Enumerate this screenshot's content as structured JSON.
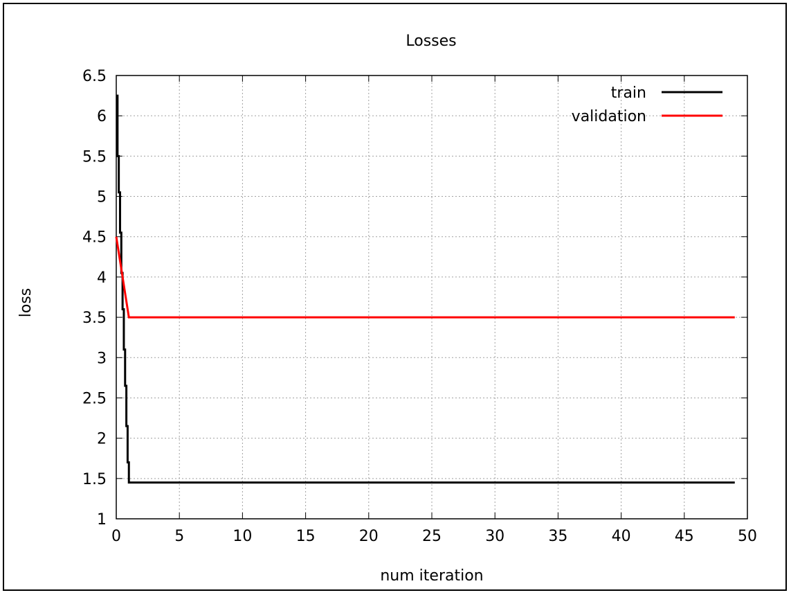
{
  "chart_data": {
    "type": "line",
    "title": "Losses",
    "xlabel": "num iteration",
    "ylabel": "loss",
    "xlim": [
      0,
      50
    ],
    "ylim": [
      1,
      6.5
    ],
    "xticks": [
      0,
      5,
      10,
      15,
      20,
      25,
      30,
      35,
      40,
      45,
      50
    ],
    "xtick_labels": [
      "0",
      "5",
      "10",
      "15",
      "20",
      "25",
      "30",
      "35",
      "40",
      "45",
      "50"
    ],
    "yticks": [
      1,
      1.5,
      2,
      2.5,
      3,
      3.5,
      4,
      4.5,
      5,
      5.5,
      6,
      6.5
    ],
    "ytick_labels": [
      "1",
      "1.5",
      "2",
      "2.5",
      "3",
      "3.5",
      "4",
      "4.5",
      "5",
      "5.5",
      "6",
      "6.5"
    ],
    "grid": true,
    "legend_position": "top-right",
    "series": [
      {
        "name": "train",
        "color": "#000000",
        "x": [
          0,
          0.1,
          0.2,
          0.3,
          0.4,
          0.5,
          0.6,
          0.7,
          0.8,
          0.9,
          1,
          49
        ],
        "y": [
          6.25,
          5.5,
          5.05,
          4.55,
          4.05,
          3.6,
          3.1,
          2.65,
          2.15,
          1.7,
          1.45,
          1.45
        ]
      },
      {
        "name": "validation",
        "color": "#ff0000",
        "x": [
          0,
          1,
          49
        ],
        "y": [
          4.5,
          3.5,
          3.5
        ]
      }
    ]
  }
}
